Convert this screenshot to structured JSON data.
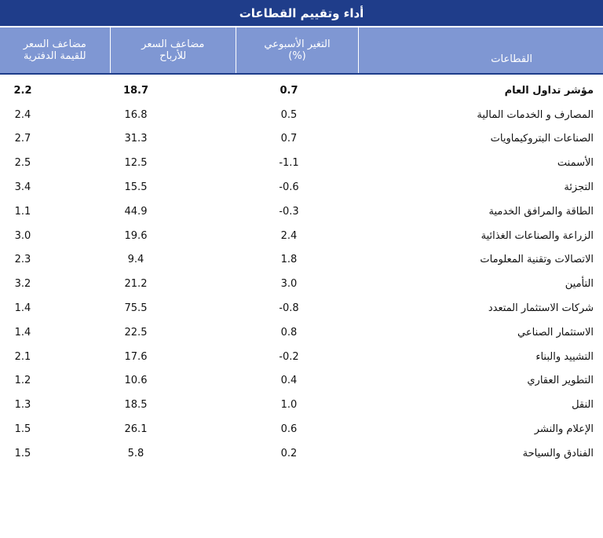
{
  "title": "أداء وتقييم القطاعات",
  "headers": {
    "sector": "القطاعات",
    "weekly_line1": "التغير الأسبوعي",
    "weekly_line2": "(%)",
    "pe_line1": "مضاعف السعر",
    "pe_line2": "للأرباح",
    "pb_line1": "مضاعف السعر",
    "pb_line2": "للقيمة الدفترية"
  },
  "chart_data": {
    "type": "table",
    "columns": [
      "القطاعات",
      "التغير الأسبوعي (%)",
      "مضاعف السعر للأرباح",
      "مضاعف السعر للقيمة الدفترية"
    ],
    "rows": [
      {
        "sector": "مؤشر تداول العام",
        "weekly": "0.7",
        "pe": "18.7",
        "pb": "2.2"
      },
      {
        "sector": "المصارف و الخدمات المالية",
        "weekly": "0.5",
        "pe": "16.8",
        "pb": "2.4"
      },
      {
        "sector": "الصناعات البتروكيماويات",
        "weekly": "0.7",
        "pe": "31.3",
        "pb": "2.7"
      },
      {
        "sector": "الأسمنت",
        "weekly": "-1.1",
        "pe": "12.5",
        "pb": "2.5"
      },
      {
        "sector": "التجزئة",
        "weekly": "-0.6",
        "pe": "15.5",
        "pb": "3.4"
      },
      {
        "sector": "الطاقة والمرافق الخدمية",
        "weekly": "-0.3",
        "pe": "44.9",
        "pb": "1.1"
      },
      {
        "sector": "الزراعة والصناعات الغذائية",
        "weekly": "2.4",
        "pe": "19.6",
        "pb": "3.0"
      },
      {
        "sector": "الاتصالات وتقنية المعلومات",
        "weekly": "1.8",
        "pe": "9.4",
        "pb": "2.3"
      },
      {
        "sector": "التأمين",
        "weekly": "3.0",
        "pe": "21.2",
        "pb": "3.2"
      },
      {
        "sector": "شركات الاستثمار المتعدد",
        "weekly": "-0.8",
        "pe": "75.5",
        "pb": "1.4"
      },
      {
        "sector": "الاستثمار الصناعي",
        "weekly": "0.8",
        "pe": "22.5",
        "pb": "1.4"
      },
      {
        "sector": "التشييد والبناء",
        "weekly": "-0.2",
        "pe": "17.6",
        "pb": "2.1"
      },
      {
        "sector": "التطوير العقاري",
        "weekly": "0.4",
        "pe": "10.6",
        "pb": "1.2"
      },
      {
        "sector": "النقل",
        "weekly": "1.0",
        "pe": "18.5",
        "pb": "1.3"
      },
      {
        "sector": "الإعلام والنشر",
        "weekly": "0.6",
        "pe": "26.1",
        "pb": "1.5"
      },
      {
        "sector": "الفنادق والسياحة",
        "weekly": "0.2",
        "pe": "5.8",
        "pb": "1.5"
      }
    ]
  },
  "colors": {
    "title_bg": "#1f3d8a",
    "header_bg": "#7f97d3",
    "header_text": "#ffffff",
    "body_text": "#111111"
  }
}
